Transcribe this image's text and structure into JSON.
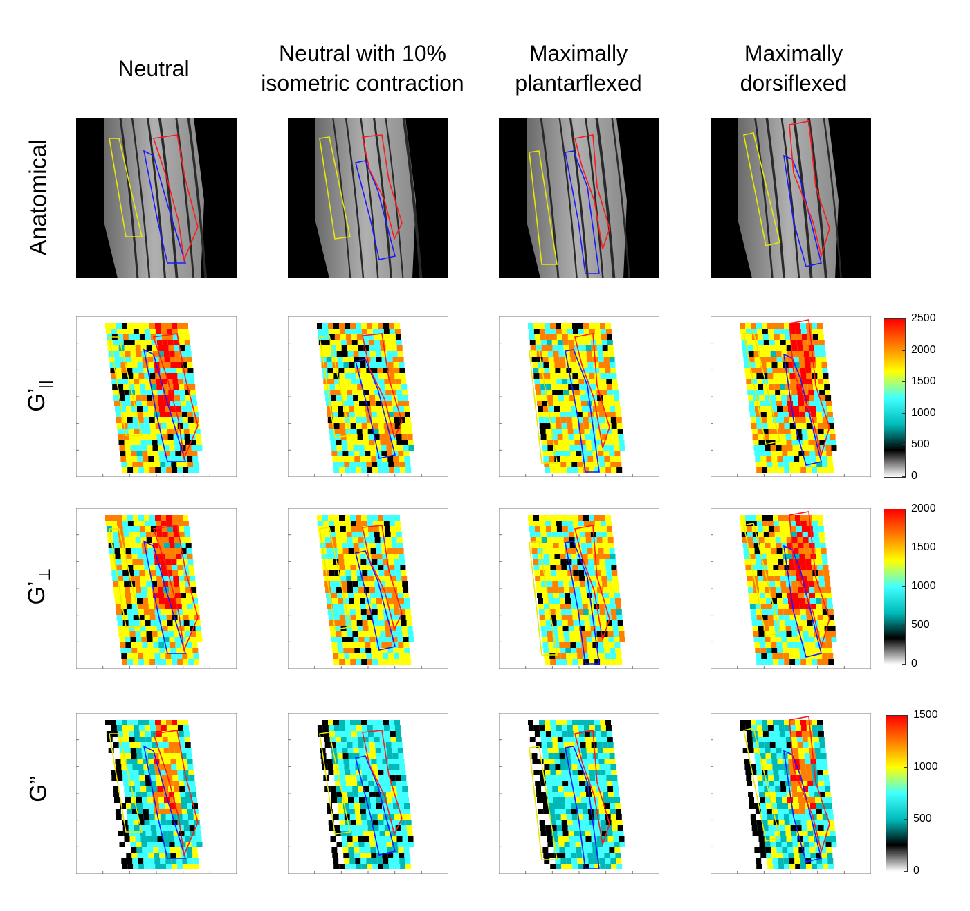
{
  "columns": [
    {
      "title": "Neutral"
    },
    {
      "title": "Neutral with 10%\nisometric contraction"
    },
    {
      "title": "Maximally\nplantarflexed"
    },
    {
      "title": "Maximally\ndorsiflexed"
    }
  ],
  "rows": [
    {
      "label": "Anatomical"
    },
    {
      "label": "G’",
      "subscript": "||"
    },
    {
      "label": "G’",
      "subscript": "⊥"
    },
    {
      "label": "G”"
    }
  ],
  "colorbars": [
    {
      "ticks": [
        "2500",
        "2000",
        "1500",
        "1000",
        "500",
        "0"
      ]
    },
    {
      "ticks": [
        "2000",
        "1500",
        "1000",
        "500",
        "0"
      ]
    },
    {
      "ticks": [
        "1500",
        "1000",
        "500",
        "0"
      ]
    }
  ],
  "roi_colors": {
    "lateral": "#e8e800",
    "medial": "#1a1aff",
    "anterior": "#ff1a1a"
  },
  "colormap": [
    "#ffffff",
    "#000000",
    "#00b8b8",
    "#40ffff",
    "#ffff00",
    "#ff8000",
    "#ff0000"
  ]
}
